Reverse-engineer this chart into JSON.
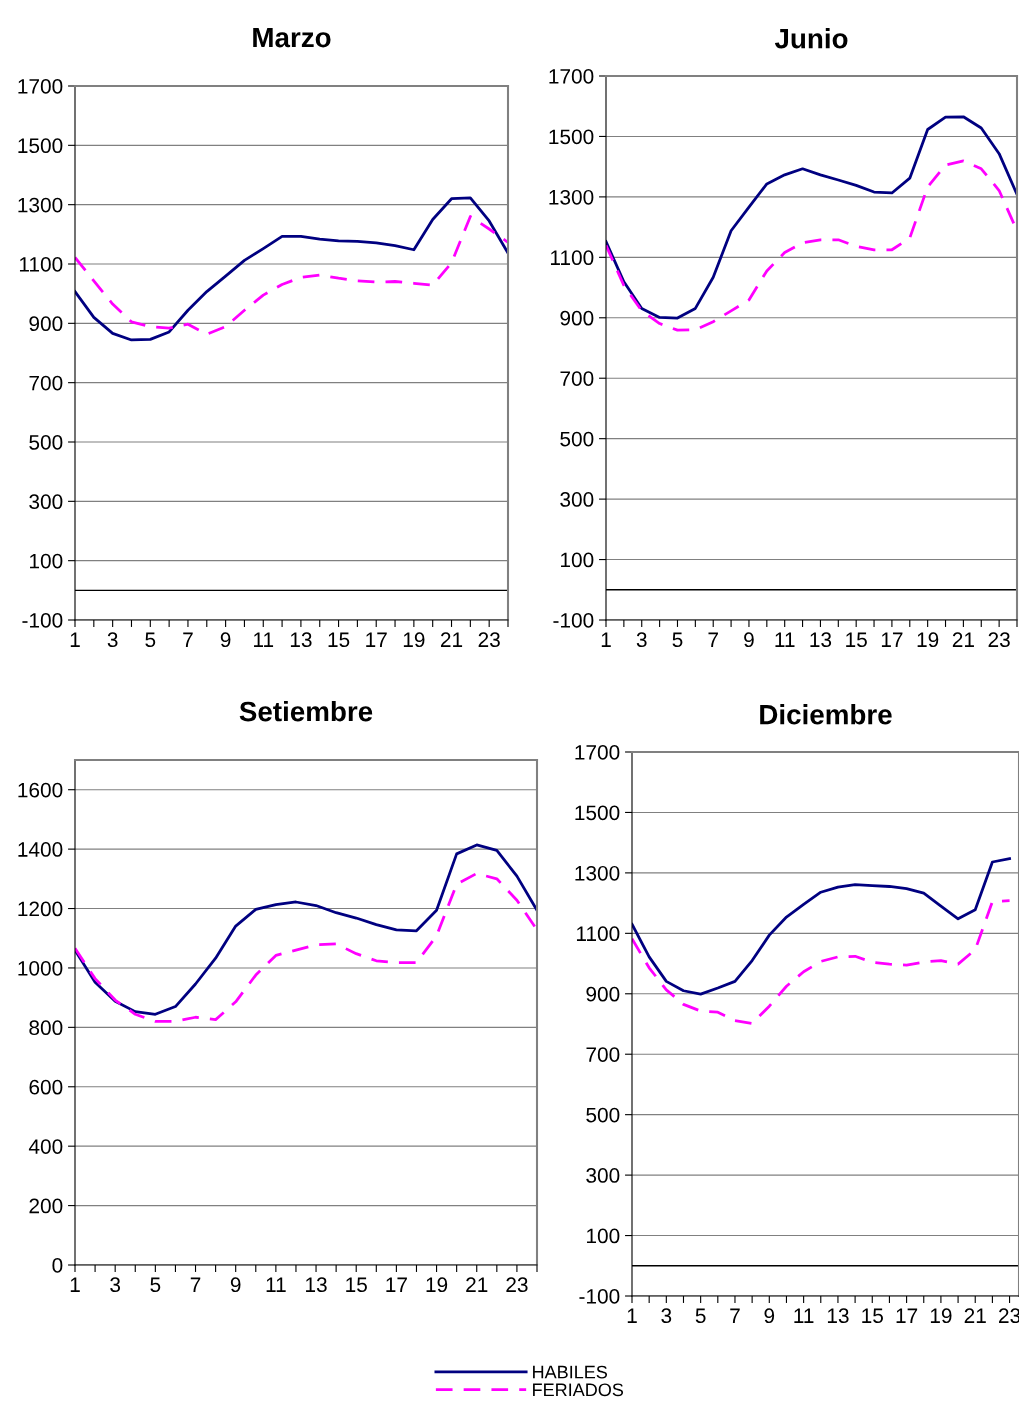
{
  "chart_data": [
    {
      "type": "line",
      "title": "Marzo",
      "x": [
        1,
        2,
        3,
        4,
        5,
        6,
        7,
        8,
        9,
        10,
        11,
        12,
        13,
        14,
        15,
        16,
        17,
        18,
        19,
        20,
        21,
        22,
        23,
        24
      ],
      "xlim": [
        1,
        24
      ],
      "xticks": [
        1,
        {
          "value": 2,
          "label": null
        },
        3,
        {
          "value": 4,
          "label": null
        },
        5,
        {
          "value": 6,
          "label": null
        },
        7,
        {
          "value": 8,
          "label": null
        },
        9,
        {
          "value": 10,
          "label": null
        },
        11,
        {
          "value": 12,
          "label": null
        },
        13,
        {
          "value": 14,
          "label": null
        },
        15,
        {
          "value": 16,
          "label": null
        },
        17,
        {
          "value": 18,
          "label": null
        },
        19,
        {
          "value": 20,
          "label": null
        },
        21,
        {
          "value": 22,
          "label": null
        },
        23,
        {
          "value": 24,
          "label": null
        }
      ],
      "ylim": [
        -100,
        1700
      ],
      "yticks": [
        -100,
        100,
        300,
        500,
        700,
        900,
        1100,
        1300,
        1500,
        1700
      ],
      "grid": "y",
      "legend": "bottom",
      "ref_lines": [
        {
          "axis": "y",
          "value": 0,
          "color": "#000000"
        }
      ],
      "series": [
        {
          "name": "HABILES",
          "color": "#000080",
          "line_style": "solid",
          "values": [
            1007,
            920,
            866,
            844,
            846,
            871,
            944,
            1007,
            1059,
            1112,
            1152,
            1193,
            1193,
            1184,
            1178,
            1176,
            1171,
            1162,
            1148,
            1250,
            1320,
            1323,
            1245,
            1137
          ]
        },
        {
          "name": "FERIADOS",
          "color": "#ff00ff",
          "line_style": "dashed",
          "values": [
            1122,
            1043,
            965,
            905,
            889,
            884,
            897,
            863,
            889,
            944,
            995,
            1031,
            1055,
            1063,
            1052,
            1043,
            1039,
            1041,
            1035,
            1029,
            1104,
            1260,
            1218,
            1173
          ]
        }
      ]
    },
    {
      "type": "line",
      "title": "Junio",
      "x": [
        1,
        2,
        3,
        4,
        5,
        6,
        7,
        8,
        9,
        10,
        11,
        12,
        13,
        14,
        15,
        16,
        17,
        18,
        19,
        20,
        21,
        22,
        23,
        24
      ],
      "xlim": [
        1,
        24
      ],
      "xticks": [
        1,
        {
          "value": 2,
          "label": null
        },
        3,
        {
          "value": 4,
          "label": null
        },
        5,
        {
          "value": 6,
          "label": null
        },
        7,
        {
          "value": 8,
          "label": null
        },
        9,
        {
          "value": 10,
          "label": null
        },
        11,
        {
          "value": 12,
          "label": null
        },
        13,
        {
          "value": 14,
          "label": null
        },
        15,
        {
          "value": 16,
          "label": null
        },
        17,
        {
          "value": 18,
          "label": null
        },
        19,
        {
          "value": 20,
          "label": null
        },
        21,
        {
          "value": 22,
          "label": null
        },
        23,
        {
          "value": 24,
          "label": null
        }
      ],
      "ylim": [
        -100,
        1700
      ],
      "yticks": [
        -100,
        100,
        300,
        500,
        700,
        900,
        1100,
        1300,
        1500,
        1700
      ],
      "grid": "y",
      "legend": "bottom",
      "ref_lines": [
        {
          "axis": "y",
          "value": 0,
          "color": "#000000"
        }
      ],
      "series": [
        {
          "name": "HABILES",
          "color": "#000080",
          "line_style": "solid",
          "values": [
            1152,
            1019,
            931,
            901,
            899,
            931,
            1034,
            1188,
            1266,
            1343,
            1373,
            1393,
            1373,
            1356,
            1338,
            1316,
            1313,
            1362,
            1523,
            1564,
            1565,
            1528,
            1443,
            1308
          ]
        },
        {
          "name": "FERIADOS",
          "color": "#ff00ff",
          "line_style": "dashed",
          "values": [
            1140,
            1007,
            923,
            881,
            859,
            860,
            887,
            923,
            959,
            1055,
            1116,
            1148,
            1158,
            1158,
            1136,
            1125,
            1125,
            1164,
            1333,
            1405,
            1419,
            1393,
            1321,
            1188
          ]
        }
      ]
    },
    {
      "type": "line",
      "title": "Setiembre",
      "x": [
        1,
        2,
        3,
        4,
        5,
        6,
        7,
        8,
        9,
        10,
        11,
        12,
        13,
        14,
        15,
        16,
        17,
        18,
        19,
        20,
        21,
        22,
        23,
        24
      ],
      "xlim": [
        1,
        24
      ],
      "xticks": [
        1,
        {
          "value": 2,
          "label": null
        },
        3,
        {
          "value": 4,
          "label": null
        },
        5,
        {
          "value": 6,
          "label": null
        },
        7,
        {
          "value": 8,
          "label": null
        },
        9,
        {
          "value": 10,
          "label": null
        },
        11,
        {
          "value": 12,
          "label": null
        },
        13,
        {
          "value": 14,
          "label": null
        },
        15,
        {
          "value": 16,
          "label": null
        },
        17,
        {
          "value": 18,
          "label": null
        },
        19,
        {
          "value": 20,
          "label": null
        },
        21,
        {
          "value": 22,
          "label": null
        },
        23,
        {
          "value": 24,
          "label": null
        }
      ],
      "ylim": [
        0,
        1700
      ],
      "yticks": [
        0,
        200,
        400,
        600,
        800,
        1000,
        1200,
        1400,
        1600
      ],
      "grid": "y",
      "legend": "bottom",
      "series": [
        {
          "name": "HABILES",
          "color": "#000080",
          "line_style": "solid",
          "values": [
            1060,
            952,
            888,
            853,
            844,
            870,
            946,
            1033,
            1141,
            1197,
            1213,
            1222,
            1210,
            1186,
            1168,
            1146,
            1128,
            1125,
            1194,
            1384,
            1414,
            1396,
            1309,
            1194
          ]
        },
        {
          "name": "FERIADOS",
          "color": "#ff00ff",
          "line_style": "dashed",
          "values": [
            1066,
            964,
            892,
            844,
            820,
            820,
            834,
            826,
            886,
            976,
            1042,
            1060,
            1078,
            1081,
            1048,
            1024,
            1018,
            1018,
            1108,
            1282,
            1318,
            1300,
            1228,
            1128
          ]
        }
      ]
    },
    {
      "type": "line",
      "title": "Diciembre",
      "x": [
        1,
        2,
        3,
        4,
        5,
        6,
        7,
        8,
        9,
        10,
        11,
        12,
        13,
        14,
        15,
        16,
        17,
        18,
        19,
        20,
        21,
        22,
        23
      ],
      "xlim": [
        1,
        23.55
      ],
      "xticks": [
        1,
        {
          "value": 2,
          "label": null
        },
        3,
        {
          "value": 4,
          "label": null
        },
        5,
        {
          "value": 6,
          "label": null
        },
        7,
        {
          "value": 8,
          "label": null
        },
        9,
        {
          "value": 10,
          "label": null
        },
        11,
        {
          "value": 12,
          "label": null
        },
        13,
        {
          "value": 14,
          "label": null
        },
        15,
        {
          "value": 16,
          "label": null
        },
        17,
        {
          "value": 18,
          "label": null
        },
        19,
        {
          "value": 20,
          "label": null
        },
        21,
        {
          "value": 22,
          "label": null
        },
        23
      ],
      "ylim": [
        -100,
        1700
      ],
      "yticks": [
        -100,
        100,
        300,
        500,
        700,
        900,
        1100,
        1300,
        1500,
        1700
      ],
      "grid": "y",
      "legend": "bottom",
      "ref_lines": [
        {
          "axis": "y",
          "value": 0,
          "color": "#000000"
        }
      ],
      "series": [
        {
          "name": "HABILES",
          "color": "#000080",
          "line_style": "solid",
          "values": [
            1130,
            1022,
            941,
            910,
            899,
            919,
            941,
            1010,
            1094,
            1154,
            1196,
            1236,
            1253,
            1261,
            1258,
            1255,
            1248,
            1233,
            1190,
            1148,
            1178,
            1336,
            1347
          ]
        },
        {
          "name": "FERIADOS",
          "color": "#ff00ff",
          "line_style": "dashed",
          "values": [
            1082,
            986,
            913,
            865,
            843,
            839,
            811,
            802,
            859,
            925,
            973,
            1007,
            1022,
            1024,
            1004,
            998,
            995,
            1005,
            1010,
            998,
            1046,
            1205,
            1208
          ]
        }
      ]
    }
  ]
}
